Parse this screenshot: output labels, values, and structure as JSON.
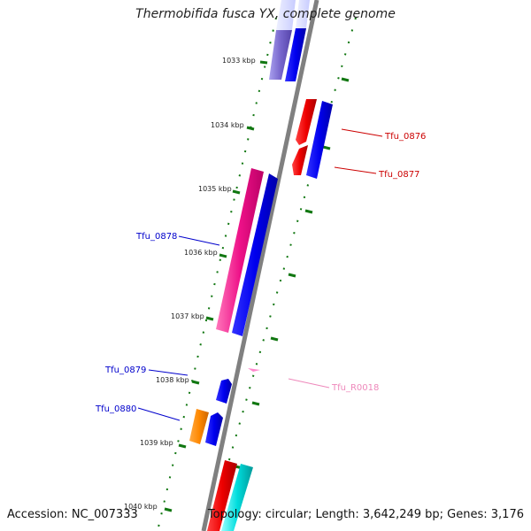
{
  "title": "Thermobifida fusca YX, complete genome",
  "accession": "Accession: NC_007333",
  "topology": "Topology: circular; Length: 3,642,249 bp; Genes: 3,176",
  "ticks": [
    "1033 kbp",
    "1034 kbp",
    "1035 kbp",
    "1036 kbp",
    "1037 kbp",
    "1038 kbp",
    "1039 kbp",
    "1040 kbp"
  ],
  "genes": [
    {
      "name": "Tfu_0876",
      "color": "#cc0000"
    },
    {
      "name": "Tfu_0877",
      "color": "#cc0000"
    },
    {
      "name": "Tfu_0878",
      "color": "#0000cc"
    },
    {
      "name": "Tfu_0879",
      "color": "#0000cc"
    },
    {
      "name": "Tfu_0880",
      "color": "#0000cc"
    },
    {
      "name": "Tfu_R0018",
      "color": "#ee88bb"
    }
  ],
  "colors": {
    "backbone": "#808080",
    "tick_dots": "#117711",
    "feature_blue": "#0000ee",
    "feature_red": "#ee0000",
    "feature_pink": "#ee1188",
    "feature_orange": "#ff8800",
    "feature_cyan": "#00dddd",
    "feature_lavender": "#7766cc"
  }
}
